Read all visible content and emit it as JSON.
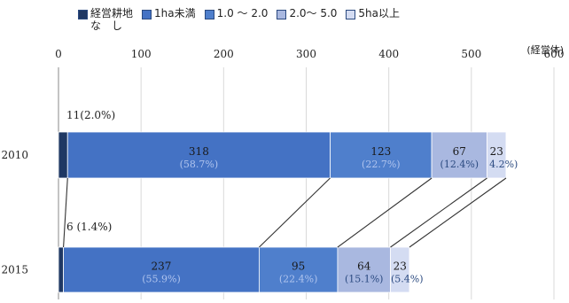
{
  "chart_data": {
    "type": "bar",
    "orientation": "horizontal",
    "stacked": true,
    "unit": "(経営体)",
    "xlim": [
      0,
      600
    ],
    "xticks": [
      0,
      100,
      200,
      300,
      400,
      500,
      600
    ],
    "categories": [
      "2010",
      "2015"
    ],
    "series": [
      {
        "name": "経営耕地\nな　し",
        "color": "#1f3864",
        "values": [
          11,
          6
        ],
        "labels": [
          "11(2.0%)",
          "6 (1.4%)"
        ]
      },
      {
        "name": "1ha未満",
        "color": "#4472c4",
        "values": [
          318,
          237
        ],
        "pct": [
          "(58.7%)",
          "(55.9%)"
        ]
      },
      {
        "name": "1.0 〜 2.0",
        "color": "#4f7fcc",
        "values": [
          123,
          95
        ],
        "pct": [
          "(22.7%)",
          "(22.4%)"
        ]
      },
      {
        "name": "2.0〜 5.0",
        "color": "#a9b8e0",
        "values": [
          67,
          64
        ],
        "pct": [
          "(12.4%)",
          "(15.1%)"
        ]
      },
      {
        "name": "5ha以上",
        "color": "#d4dcf2",
        "values": [
          23,
          23
        ],
        "pct": [
          "4.2%)",
          "(5.4%)"
        ]
      }
    ],
    "grid": true,
    "legend": "top"
  }
}
